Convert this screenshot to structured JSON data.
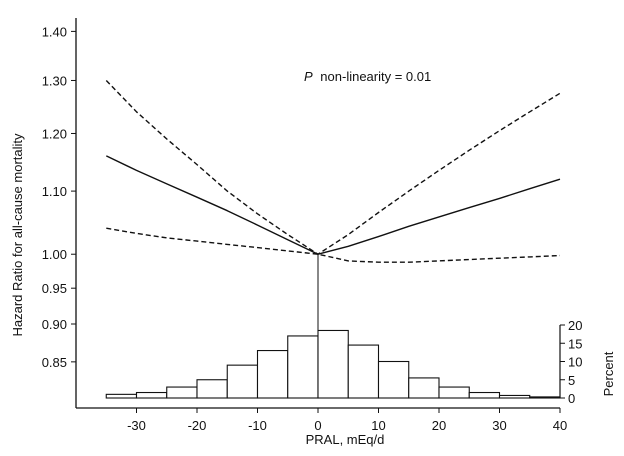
{
  "chart_data": {
    "type": "line",
    "title": "",
    "xlabel": "PRAL, mEq/d",
    "ylabel": "Hazard Ratio for all-cause mortality",
    "y2label": "Percent",
    "annotation_p": "P",
    "annotation_rest": "non-linearity   = 0.01",
    "xlim": [
      -40,
      40
    ],
    "ylim_log": [
      0.8,
      1.42
    ],
    "x_ticks": [
      "-30",
      "-20",
      "-10",
      "0",
      "10",
      "20",
      "30",
      "40"
    ],
    "x_tick_values": [
      -30,
      -20,
      -10,
      0,
      10,
      20,
      30,
      40
    ],
    "y_ticks": [
      "0.85",
      "0.90",
      "0.95",
      "1.00",
      "1.10",
      "1.20",
      "1.30",
      "1.40"
    ],
    "y_tick_values": [
      0.85,
      0.9,
      0.95,
      1.0,
      1.1,
      1.2,
      1.3,
      1.4
    ],
    "y2_ticks": [
      "0",
      "5",
      "10",
      "15",
      "20"
    ],
    "y2_tick_values": [
      0,
      5,
      10,
      15,
      20
    ],
    "reference_x": 0,
    "series": [
      {
        "role": "estimate",
        "style": "solid",
        "x": [
          -35,
          -30,
          -25,
          -20,
          -15,
          -10,
          -5,
          0,
          5,
          10,
          15,
          20,
          25,
          30,
          35,
          40
        ],
        "y": [
          1.16,
          1.135,
          1.112,
          1.09,
          1.068,
          1.045,
          1.022,
          1.0,
          1.012,
          1.027,
          1.043,
          1.058,
          1.073,
          1.088,
          1.104,
          1.12
        ]
      },
      {
        "role": "upper-ci",
        "style": "dashed",
        "x": [
          -35,
          -30,
          -25,
          -20,
          -15,
          -10,
          -5,
          0,
          5,
          10,
          15,
          20,
          25,
          30,
          35,
          40
        ],
        "y": [
          1.3,
          1.24,
          1.19,
          1.145,
          1.1,
          1.063,
          1.03,
          1.0,
          1.03,
          1.065,
          1.1,
          1.135,
          1.17,
          1.205,
          1.24,
          1.275
        ]
      },
      {
        "role": "lower-ci",
        "style": "dashed",
        "x": [
          -35,
          -30,
          -25,
          -20,
          -15,
          -10,
          -5,
          0,
          5,
          10,
          15,
          20,
          25,
          30,
          35,
          40
        ],
        "y": [
          1.04,
          1.032,
          1.025,
          1.02,
          1.015,
          1.01,
          1.005,
          1.0,
          0.99,
          0.988,
          0.988,
          0.99,
          0.992,
          0.994,
          0.996,
          0.998
        ]
      }
    ],
    "histogram": {
      "bin_width": 5,
      "bins": [
        {
          "x0": -35,
          "percent": 1
        },
        {
          "x0": -30,
          "percent": 1.5
        },
        {
          "x0": -25,
          "percent": 3
        },
        {
          "x0": -20,
          "percent": 5
        },
        {
          "x0": -15,
          "percent": 9
        },
        {
          "x0": -10,
          "percent": 13
        },
        {
          "x0": -5,
          "percent": 17
        },
        {
          "x0": 0,
          "percent": 18.5
        },
        {
          "x0": 5,
          "percent": 14.5
        },
        {
          "x0": 10,
          "percent": 10
        },
        {
          "x0": 15,
          "percent": 5.5
        },
        {
          "x0": 20,
          "percent": 3
        },
        {
          "x0": 25,
          "percent": 1.5
        },
        {
          "x0": 30,
          "percent": 0.7
        },
        {
          "x0": 35,
          "percent": 0.3
        }
      ]
    }
  }
}
